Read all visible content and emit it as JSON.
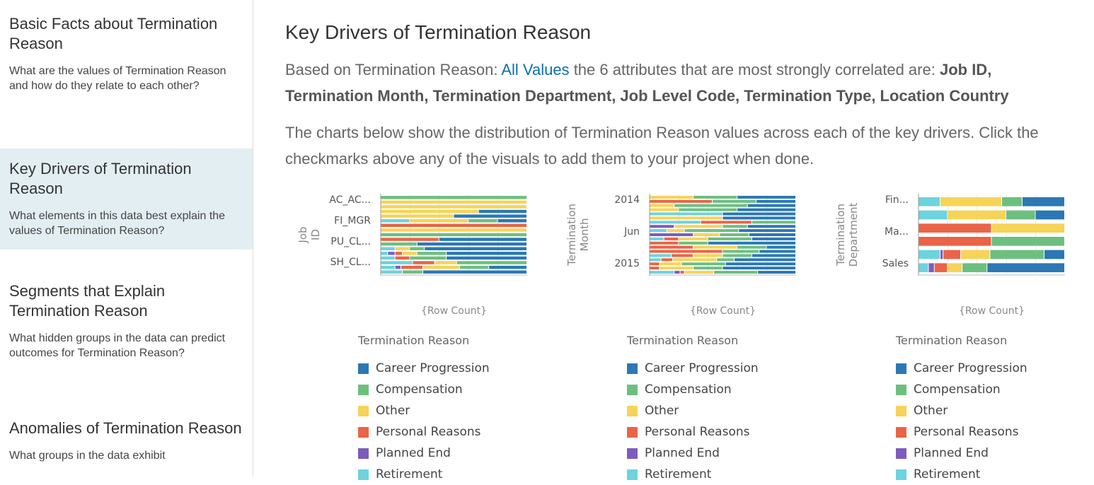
{
  "sidebar": {
    "items": [
      {
        "title": "Basic Facts about Termination Reason",
        "desc": "What are the values of Termination Reason and how do they relate to each other?"
      },
      {
        "title": "Key Drivers of Termination Reason",
        "desc": "What elements in this data best explain the values of Termination Reason?"
      },
      {
        "title": "Segments that Explain Termination Reason",
        "desc": "What hidden groups in the data can predict outcomes for Termination Reason?"
      },
      {
        "title": "Anomalies of Termination Reason",
        "desc": "What groups in the data exhibit"
      }
    ]
  },
  "main": {
    "title": "Key Drivers of Termination Reason",
    "intro_prefix": "Based on Termination Reason:",
    "intro_link": "All Values",
    "intro_middle": "the 6 attributes that are most strongly correlated are:",
    "intro_bold": "Job ID, Termination Month, Termination Department, Job Level Code, Termination Type, Location Country",
    "description": "The charts below show the distribution of Termination Reason values across each of the key drivers. Click the checkmarks above any of the visuals to add them to your project when done."
  },
  "colors": {
    "Career Progression": "#2b78b5",
    "Compensation": "#6dbf7f",
    "Other": "#f7d358",
    "Personal Reasons": "#ea6447",
    "Planned End": "#7c5cbf",
    "Retirement": "#6dd3dd"
  },
  "chart_data": [
    {
      "type": "bar",
      "stacked": "100%",
      "orientation": "horizontal",
      "ylabel": "Job ID",
      "xlabel": "{Row Count}",
      "tick_labels": [
        "AC_AC...",
        "FI_MGR",
        "PU_CL...",
        "SH_CL..."
      ],
      "series_order": [
        "Retirement",
        "Planned End",
        "Personal Reasons",
        "Other",
        "Compensation",
        "Career Progression"
      ],
      "rows": [
        [
          0,
          0,
          0,
          0,
          1,
          0
        ],
        [
          0,
          0,
          0,
          1,
          0,
          0
        ],
        [
          0,
          0,
          0,
          1,
          0,
          0
        ],
        [
          0,
          0,
          0,
          0.67,
          0,
          0.33
        ],
        [
          0,
          0,
          0,
          0.5,
          0,
          0.5
        ],
        [
          0.2,
          0,
          0,
          0.4,
          0.2,
          0.2
        ],
        [
          0,
          0,
          1,
          0,
          0,
          0
        ],
        [
          0,
          0,
          0,
          1,
          0,
          0
        ],
        [
          0,
          0,
          0,
          0,
          1,
          0
        ],
        [
          0,
          0,
          0.4,
          0,
          0,
          0.6
        ],
        [
          0,
          0,
          0,
          0,
          0.25,
          0.75
        ],
        [
          0.1,
          0,
          0,
          0.1,
          0.1,
          0.7
        ],
        [
          0.05,
          0.05,
          0.05,
          0.1,
          0.2,
          0.55
        ],
        [
          0.1,
          0,
          0.1,
          0,
          0.25,
          0.55
        ],
        [
          0.22,
          0,
          0.15,
          0.15,
          0.48,
          0
        ],
        [
          0.1,
          0.04,
          0.15,
          0.25,
          0.2,
          0.26
        ],
        [
          0.15,
          0,
          0,
          0,
          0.14,
          0.71
        ]
      ]
    },
    {
      "type": "bar",
      "stacked": "100%",
      "orientation": "horizontal",
      "ylabel": "Termination Month",
      "xlabel": "{Row Count}",
      "tick_labels": [
        "2014",
        "Jun",
        "2015"
      ],
      "series_order": [
        "Retirement",
        "Planned End",
        "Personal Reasons",
        "Other",
        "Compensation",
        "Career Progression"
      ],
      "rows": [
        [
          0,
          0,
          0,
          0.3,
          0.3,
          0.4
        ],
        [
          0,
          0,
          0.43,
          0,
          0.3,
          0.27
        ],
        [
          0,
          0,
          0,
          0.17,
          0.5,
          0.33
        ],
        [
          0,
          0,
          0,
          0.2,
          0.4,
          0.4
        ],
        [
          0.5,
          0,
          0,
          0,
          0,
          0.5
        ],
        [
          0,
          0,
          0,
          0.5,
          0,
          0.5
        ],
        [
          0.35,
          0,
          0.35,
          0,
          0.3,
          0
        ],
        [
          0,
          0.17,
          0,
          0.33,
          0.17,
          0.33
        ],
        [
          0.12,
          0,
          0,
          0.12,
          0.37,
          0.39
        ],
        [
          0,
          0.3,
          0,
          0.18,
          0.2,
          0.32
        ],
        [
          0.1,
          0,
          0.1,
          0.2,
          0.3,
          0.3
        ],
        [
          0,
          0,
          0.2,
          0,
          0.2,
          0.6
        ],
        [
          0,
          0,
          0.3,
          0.3,
          0.2,
          0.2
        ],
        [
          0,
          0,
          0.5,
          0,
          0.25,
          0.25
        ],
        [
          0.15,
          0,
          0.15,
          0.2,
          0.2,
          0.3
        ],
        [
          0.08,
          0,
          0.08,
          0.3,
          0.12,
          0.42
        ],
        [
          0,
          0,
          0.07,
          0.15,
          0.3,
          0.48
        ],
        [
          0,
          0,
          0.07,
          0.23,
          0.2,
          0.5
        ],
        [
          0.17,
          0.04,
          0.03,
          0.2,
          0.3,
          0.26
        ]
      ]
    },
    {
      "type": "bar",
      "stacked": "100%",
      "orientation": "horizontal",
      "ylabel": "Termination Department",
      "xlabel": "{Row Count}",
      "tick_labels": [
        "Fin...",
        "Ma...",
        "Sales"
      ],
      "series_order": [
        "Retirement",
        "Planned End",
        "Personal Reasons",
        "Other",
        "Compensation",
        "Career Progression"
      ],
      "rows": [
        [
          0.15,
          0,
          0,
          0.42,
          0.14,
          0.29
        ],
        [
          0.2,
          0,
          0,
          0.4,
          0.2,
          0.2
        ],
        [
          0,
          0,
          0.5,
          0.5,
          0,
          0
        ],
        [
          0,
          0,
          0.5,
          0,
          0.5,
          0
        ],
        [
          0.15,
          0.02,
          0.12,
          0.2,
          0.37,
          0.14
        ],
        [
          0.07,
          0.04,
          0.09,
          0.1,
          0.17,
          0.53
        ]
      ]
    }
  ],
  "legend": {
    "title": "Termination Reason",
    "items": [
      "Career Progression",
      "Compensation",
      "Other",
      "Personal Reasons",
      "Planned End",
      "Retirement"
    ]
  }
}
